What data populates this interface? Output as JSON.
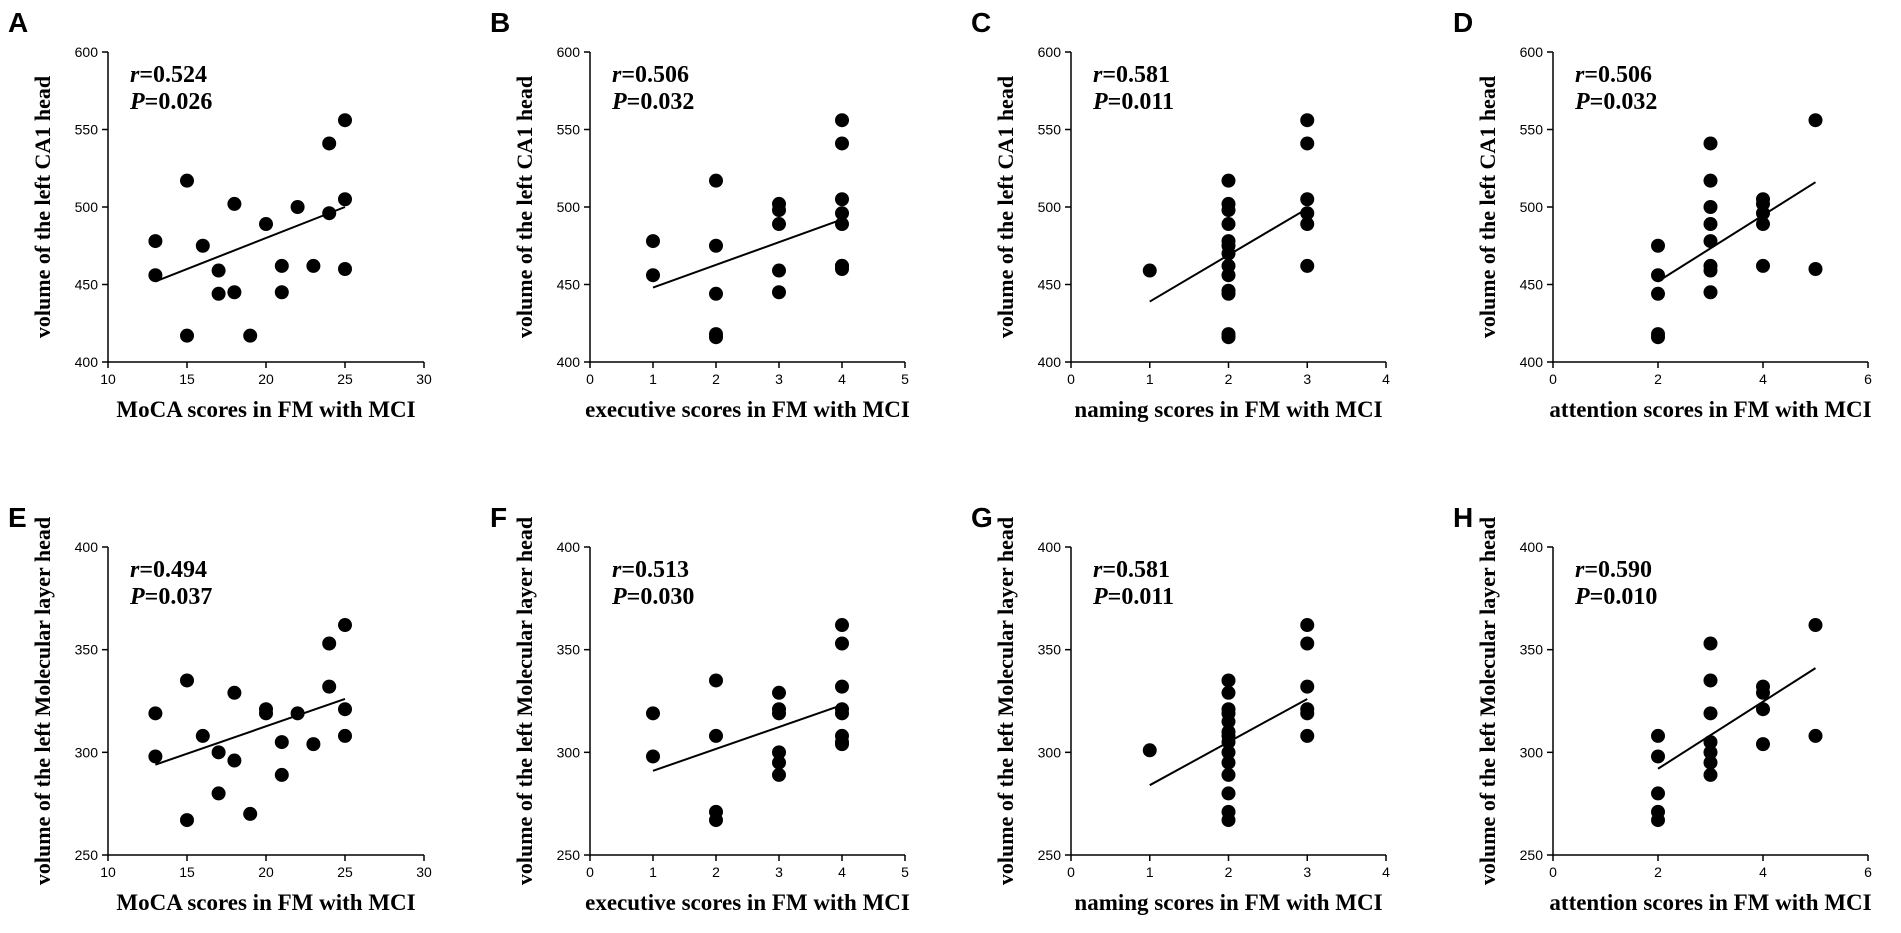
{
  "chart_data": [
    {
      "type": "scatter",
      "letter": "A",
      "xlabel": "MoCA scores in FM with MCI",
      "ylabel": "volume of the left CA1 head",
      "r_label": "r",
      "r_value": "=0.524",
      "p_label": "P",
      "p_value": "=0.026",
      "xlim": [
        10,
        30
      ],
      "ylim": [
        400,
        600
      ],
      "xticks": [
        "10",
        "15",
        "20",
        "25",
        "30"
      ],
      "yticks": [
        "400",
        "450",
        "500",
        "550",
        "600"
      ],
      "fit": [
        [
          13,
          452
        ],
        [
          25,
          500
        ]
      ],
      "x": [
        13,
        13,
        15,
        15,
        16,
        17,
        17,
        18,
        18,
        19,
        20,
        21,
        21,
        22,
        23,
        24,
        24,
        25,
        25,
        25
      ],
      "y": [
        456,
        478,
        517,
        417,
        475,
        459,
        444,
        445,
        502,
        417,
        489,
        462,
        445,
        500,
        462,
        496,
        541,
        556,
        505,
        460
      ]
    },
    {
      "type": "scatter",
      "letter": "B",
      "xlabel": "executive scores in FM with MCI",
      "ylabel": "volume of the left CA1 head",
      "r_label": "r",
      "r_value": "=0.506",
      "p_label": "P",
      "p_value": "=0.032",
      "xlim": [
        0,
        5
      ],
      "ylim": [
        400,
        600
      ],
      "xticks": [
        "0",
        "1",
        "2",
        "3",
        "4",
        "5"
      ],
      "yticks": [
        "400",
        "450",
        "500",
        "550",
        "600"
      ],
      "fit": [
        [
          1,
          448
        ],
        [
          4,
          492
        ]
      ],
      "x": [
        1,
        1,
        2,
        2,
        2,
        2,
        2,
        3,
        3,
        3,
        3,
        3,
        4,
        4,
        4,
        4,
        4,
        4,
        4,
        4
      ],
      "y": [
        456,
        478,
        517,
        475,
        444,
        418,
        416,
        502,
        498,
        489,
        459,
        445,
        556,
        541,
        505,
        496,
        489,
        462,
        460,
        462
      ]
    },
    {
      "type": "scatter",
      "letter": "C",
      "xlabel": "naming scores in FM with MCI",
      "ylabel": "volume of the left CA1 head",
      "r_label": "r",
      "r_value": "=0.581",
      "p_label": "P",
      "p_value": "=0.011",
      "xlim": [
        0,
        4
      ],
      "ylim": [
        400,
        600
      ],
      "xticks": [
        "0",
        "1",
        "2",
        "3",
        "4"
      ],
      "yticks": [
        "400",
        "450",
        "500",
        "550",
        "600"
      ],
      "fit": [
        [
          1,
          439
        ],
        [
          3,
          499
        ]
      ],
      "x": [
        1,
        2,
        2,
        2,
        2,
        2,
        2,
        2,
        2,
        2,
        2,
        2,
        2,
        2,
        3,
        3,
        3,
        3,
        3,
        3
      ],
      "y": [
        459,
        517,
        502,
        498,
        489,
        478,
        475,
        462,
        456,
        446,
        444,
        418,
        416,
        470,
        556,
        541,
        505,
        496,
        489,
        462
      ]
    },
    {
      "type": "scatter",
      "letter": "D",
      "xlabel": "attention scores in FM with MCI",
      "ylabel": "volume of the left CA1 head",
      "r_label": "r",
      "r_value": "=0.506",
      "p_label": "P",
      "p_value": "=0.032",
      "xlim": [
        0,
        6
      ],
      "ylim": [
        400,
        600
      ],
      "xticks": [
        "0",
        "2",
        "4",
        "6"
      ],
      "yticks": [
        "400",
        "450",
        "500",
        "550",
        "600"
      ],
      "fit": [
        [
          2,
          452
        ],
        [
          5,
          516
        ]
      ],
      "x": [
        2,
        2,
        2,
        2,
        2,
        3,
        3,
        3,
        3,
        3,
        3,
        3,
        3,
        4,
        4,
        4,
        4,
        4,
        5,
        5
      ],
      "y": [
        475,
        456,
        444,
        418,
        416,
        541,
        517,
        500,
        489,
        478,
        462,
        459,
        445,
        505,
        502,
        496,
        489,
        462,
        556,
        460
      ]
    },
    {
      "type": "scatter",
      "letter": "E",
      "xlabel": "MoCA scores in FM with MCI",
      "ylabel": "volume of the left Molecular layer head",
      "r_label": "r",
      "r_value": "=0.494",
      "p_label": "P",
      "p_value": "=0.037",
      "xlim": [
        10,
        30
      ],
      "ylim": [
        250,
        400
      ],
      "xticks": [
        "10",
        "15",
        "20",
        "25",
        "30"
      ],
      "yticks": [
        "250",
        "300",
        "350",
        "400"
      ],
      "fit": [
        [
          13,
          294
        ],
        [
          25,
          326
        ]
      ],
      "x": [
        13,
        13,
        15,
        15,
        16,
        17,
        17,
        18,
        18,
        19,
        20,
        20,
        21,
        21,
        22,
        23,
        24,
        24,
        25,
        25,
        25
      ],
      "y": [
        319,
        298,
        335,
        267,
        308,
        300,
        280,
        329,
        296,
        270,
        321,
        319,
        305,
        289,
        319,
        304,
        353,
        332,
        362,
        321,
        308
      ]
    },
    {
      "type": "scatter",
      "letter": "F",
      "xlabel": "executive scores in FM with MCI",
      "ylabel": "volume of the left Molecular layer head",
      "r_label": "r",
      "r_value": "=0.513",
      "p_label": "P",
      "p_value": "=0.030",
      "xlim": [
        0,
        5
      ],
      "ylim": [
        250,
        400
      ],
      "xticks": [
        "0",
        "1",
        "2",
        "3",
        "4",
        "5"
      ],
      "yticks": [
        "250",
        "300",
        "350",
        "400"
      ],
      "fit": [
        [
          1,
          291
        ],
        [
          4,
          323
        ]
      ],
      "x": [
        1,
        1,
        2,
        2,
        2,
        2,
        3,
        3,
        3,
        3,
        3,
        3,
        4,
        4,
        4,
        4,
        4,
        4,
        4,
        4
      ],
      "y": [
        319,
        298,
        335,
        308,
        271,
        267,
        329,
        321,
        319,
        300,
        295,
        289,
        362,
        353,
        332,
        321,
        319,
        308,
        305,
        304
      ]
    },
    {
      "type": "scatter",
      "letter": "G",
      "xlabel": "naming scores in FM with MCI",
      "ylabel": "volume of the left Molecular layer head",
      "r_label": "r",
      "r_value": "=0.581",
      "p_label": "P",
      "p_value": "=0.011",
      "xlim": [
        0,
        4
      ],
      "ylim": [
        250,
        400
      ],
      "xticks": [
        "0",
        "1",
        "2",
        "3",
        "4"
      ],
      "yticks": [
        "250",
        "300",
        "350",
        "400"
      ],
      "fit": [
        [
          1,
          284
        ],
        [
          3,
          326
        ]
      ],
      "x": [
        1,
        2,
        2,
        2,
        2,
        2,
        2,
        2,
        2,
        2,
        2,
        2,
        2,
        2,
        2,
        3,
        3,
        3,
        3,
        3,
        3
      ],
      "y": [
        301,
        335,
        329,
        321,
        319,
        308,
        305,
        300,
        295,
        289,
        280,
        271,
        267,
        315,
        310,
        362,
        353,
        332,
        321,
        319,
        308
      ]
    },
    {
      "type": "scatter",
      "letter": "H",
      "xlabel": "attention scores in FM with MCI",
      "ylabel": "volume of the left Molecular layer head",
      "r_label": "r",
      "r_value": "=0.590",
      "p_label": "P",
      "p_value": "=0.010",
      "xlim": [
        0,
        6
      ],
      "ylim": [
        250,
        400
      ],
      "xticks": [
        "0",
        "2",
        "4",
        "6"
      ],
      "yticks": [
        "250",
        "300",
        "350",
        "400"
      ],
      "fit": [
        [
          2,
          292
        ],
        [
          5,
          341
        ]
      ],
      "x": [
        2,
        2,
        2,
        2,
        2,
        3,
        3,
        3,
        3,
        3,
        3,
        3,
        4,
        4,
        4,
        4,
        5,
        5
      ],
      "y": [
        308,
        298,
        280,
        271,
        267,
        353,
        335,
        319,
        305,
        300,
        295,
        289,
        332,
        329,
        321,
        304,
        362,
        308
      ]
    }
  ]
}
